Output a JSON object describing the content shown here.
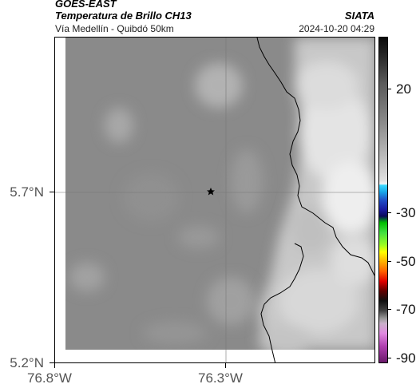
{
  "header": {
    "satellite": "GOES-EAST",
    "product": "Temperatura de Brillo CH13",
    "organization": "SIATA",
    "route": "Vía Medellín - Quibdó 50km",
    "timestamp": "2024-10-20 04:29"
  },
  "map": {
    "lat_ticks": [
      "5.7°N",
      "5.2°N"
    ],
    "lon_ticks": [
      "76.8°W",
      "76.3°W"
    ],
    "marker": "star-marker",
    "colors": {
      "background_gray": "#8a8a8a",
      "cloud_white": "#e6e6e6",
      "boundary": "#000000"
    }
  },
  "colorbar": {
    "labels": [
      "20",
      "-30",
      "-50",
      "-70",
      "-90"
    ]
  }
}
